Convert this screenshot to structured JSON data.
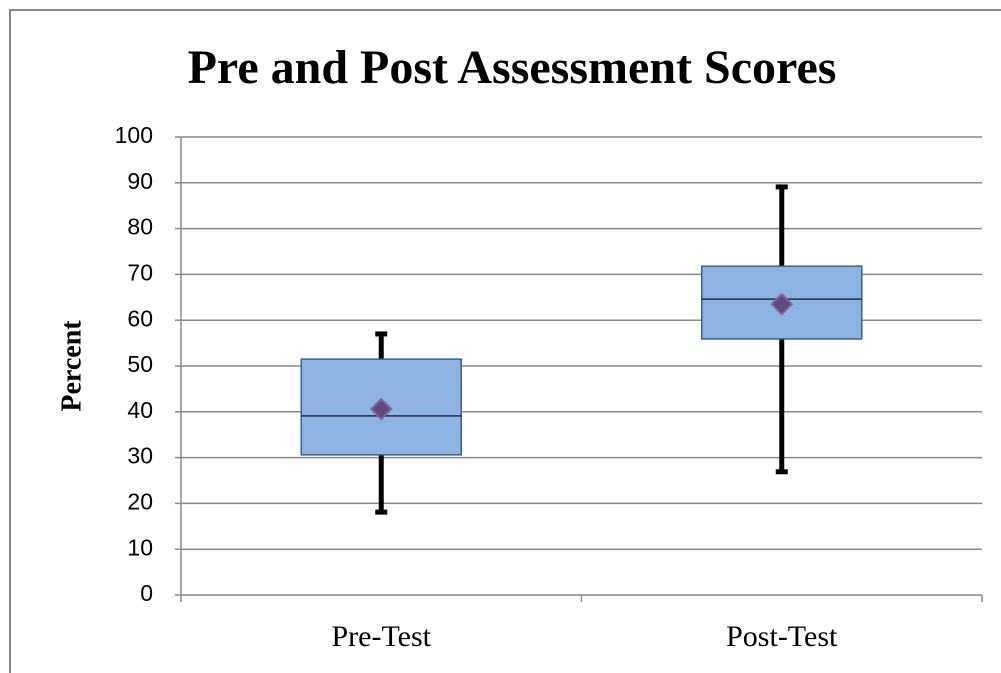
{
  "chart_data": {
    "type": "box",
    "title": "Pre and Post Assessment Scores",
    "y_label": "Percent",
    "categories": [
      "Pre-Test",
      "Post-Test"
    ],
    "min": [
      18.1,
      26.9
    ],
    "q1": [
      30.6,
      55.9
    ],
    "median": [
      39.1,
      64.6
    ],
    "q3": [
      51.5,
      71.8
    ],
    "max": [
      57.0,
      89.1
    ],
    "mean": [
      40.6,
      63.5
    ],
    "color": "#8db3e2",
    "whisker_color": "#000000",
    "mean_color": "#604a7b",
    "ylim": [
      0,
      100
    ],
    "yticks": [
      0,
      10,
      20,
      30,
      40,
      50,
      60,
      70,
      80,
      90,
      100
    ],
    "grid": true
  }
}
